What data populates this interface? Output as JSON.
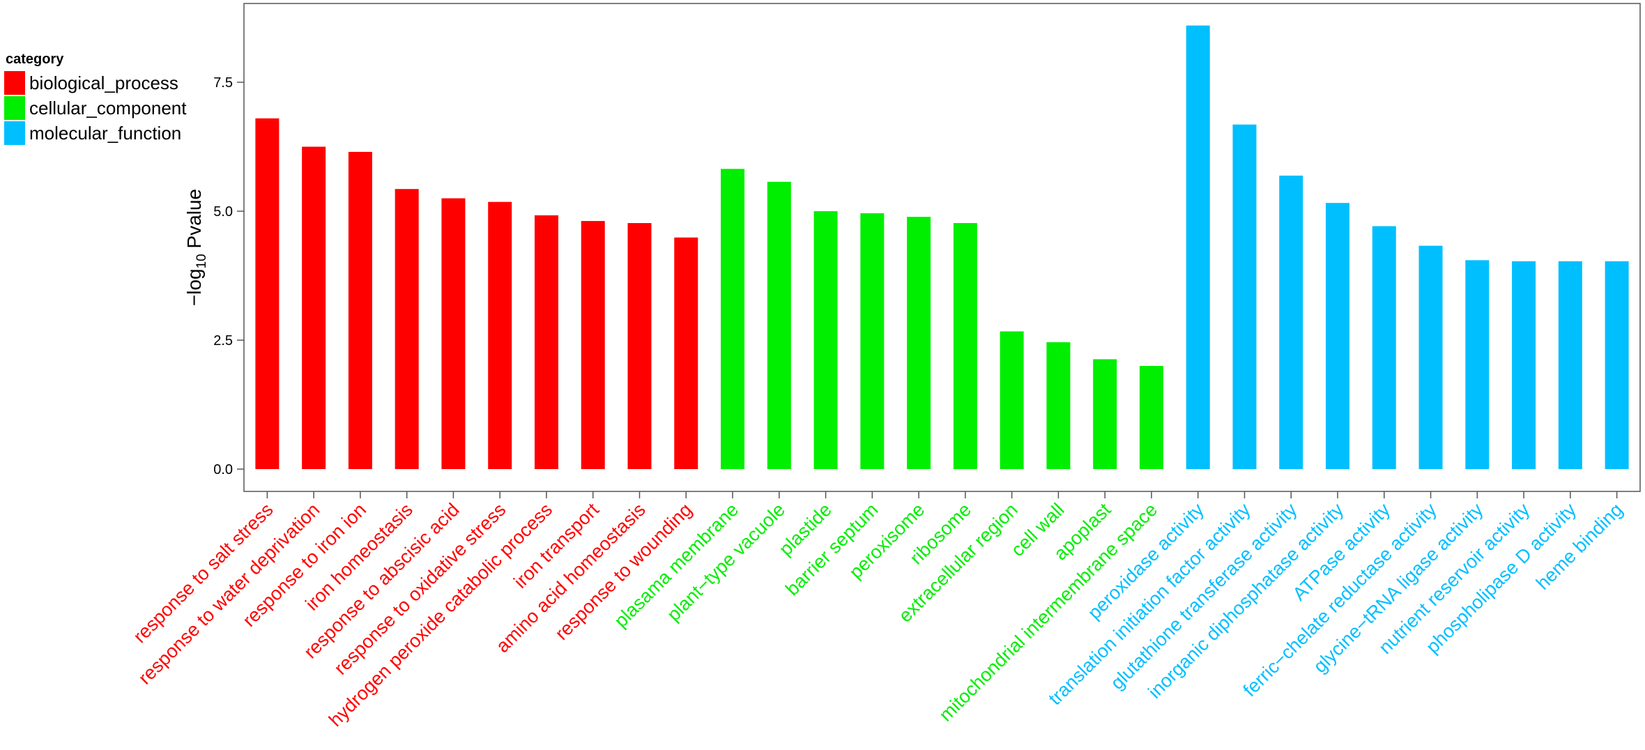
{
  "legend": {
    "title": "category",
    "items": [
      {
        "name": "biological_process",
        "color": "#FF0000"
      },
      {
        "name": "cellular_component",
        "color": "#00EE00"
      },
      {
        "name": "molecular_function",
        "color": "#00BFFF"
      }
    ]
  },
  "chart_data": {
    "type": "bar",
    "title": "",
    "xlabel": "",
    "ylabel": "−log10 Pvalue",
    "ylabel_parts": {
      "prefix": "−log",
      "sub": "10",
      "suffix": " Pvalue"
    },
    "ylim": [
      0,
      8.9
    ],
    "yticks": [
      0.0,
      2.5,
      5.0,
      7.5
    ],
    "ytick_labels": [
      "0.0",
      "2.5",
      "5.0",
      "7.5"
    ],
    "grid": false,
    "legend_position": "left",
    "categories": [
      "response to salt stress",
      "response to water deprivation",
      "response to iron ion",
      "iron homeostasis",
      "response to abscisic acid",
      "response to oxidative stress",
      "hydrogen peroxide catabolic process",
      "iron transport",
      "amino acid homeostasis",
      "response to wounding",
      "plasama membrane",
      "plant−type vacuole",
      "plastide",
      "barrier septum",
      "peroxisome",
      "ribosome",
      "extracellular region",
      "cell wall",
      "apoplast",
      "mitochondrial intermembrane space",
      "peroxidase activity",
      "translation initiation factor activity",
      "glutathione transferase activity",
      "inorganic diphosphatase activity",
      "ATPase activity",
      "ferric−chelate reductase activity",
      "glycine−tRNA ligase activity",
      "nutrient reservoir activity",
      "phospholipase D activity",
      "heme binding"
    ],
    "values": [
      6.8,
      6.25,
      6.15,
      5.43,
      5.25,
      5.18,
      4.92,
      4.81,
      4.77,
      4.49,
      5.82,
      5.57,
      5.0,
      4.96,
      4.89,
      4.77,
      2.67,
      2.46,
      2.13,
      2.0,
      8.6,
      6.68,
      5.69,
      5.16,
      4.71,
      4.33,
      4.05,
      4.03,
      4.03,
      4.03
    ],
    "bar_category": [
      "biological_process",
      "biological_process",
      "biological_process",
      "biological_process",
      "biological_process",
      "biological_process",
      "biological_process",
      "biological_process",
      "biological_process",
      "biological_process",
      "cellular_component",
      "cellular_component",
      "cellular_component",
      "cellular_component",
      "cellular_component",
      "cellular_component",
      "cellular_component",
      "cellular_component",
      "cellular_component",
      "cellular_component",
      "molecular_function",
      "molecular_function",
      "molecular_function",
      "molecular_function",
      "molecular_function",
      "molecular_function",
      "molecular_function",
      "molecular_function",
      "molecular_function",
      "molecular_function"
    ]
  }
}
